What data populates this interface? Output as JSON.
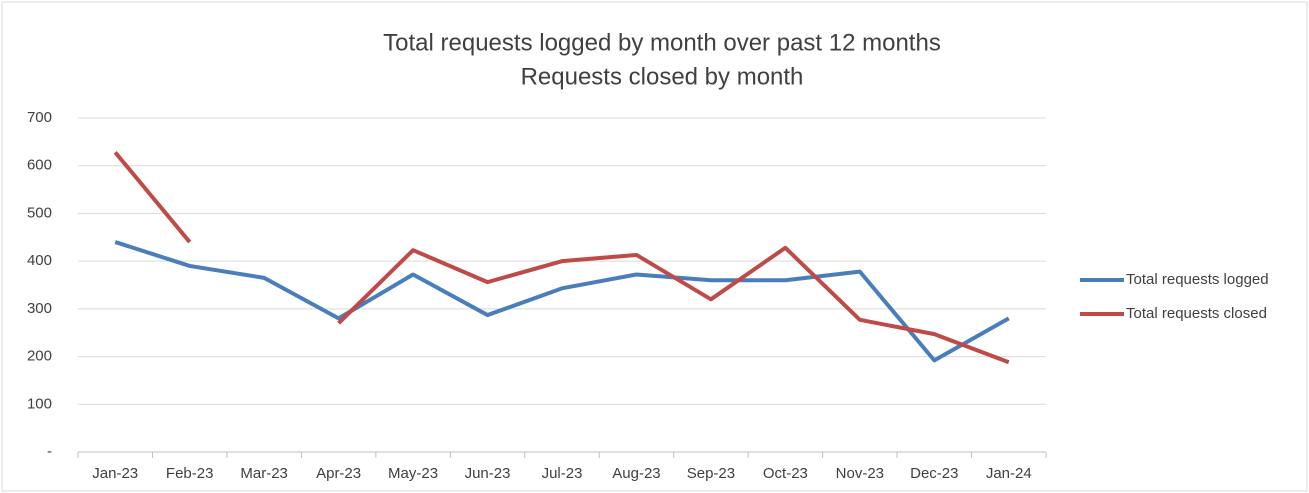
{
  "chart_data": {
    "type": "line",
    "title": "Total requests logged by month over past 12 months",
    "subtitle": "Requests closed by month",
    "categories": [
      "Jan-23",
      "Feb-23",
      "Mar-23",
      "Apr-23",
      "May-23",
      "Jun-23",
      "Jul-23",
      "Aug-23",
      "Sep-23",
      "Oct-23",
      "Nov-23",
      "Dec-23",
      "Jan-24"
    ],
    "series": [
      {
        "name": "Total requests logged",
        "color": "#4a7ebb",
        "values": [
          440,
          390,
          365,
          280,
          372,
          287,
          343,
          372,
          360,
          360,
          378,
          192,
          280
        ]
      },
      {
        "name": "Total requests closed",
        "color": "#be4b48",
        "values": [
          628,
          440,
          null,
          270,
          423,
          356,
          400,
          413,
          320,
          428,
          277,
          247,
          188
        ]
      }
    ],
    "ylim": [
      0,
      700
    ],
    "yticks": [
      {
        "value": 0,
        "label": "-"
      },
      100,
      200,
      300,
      400,
      500,
      600,
      700
    ],
    "grid": true,
    "legend": "right"
  }
}
